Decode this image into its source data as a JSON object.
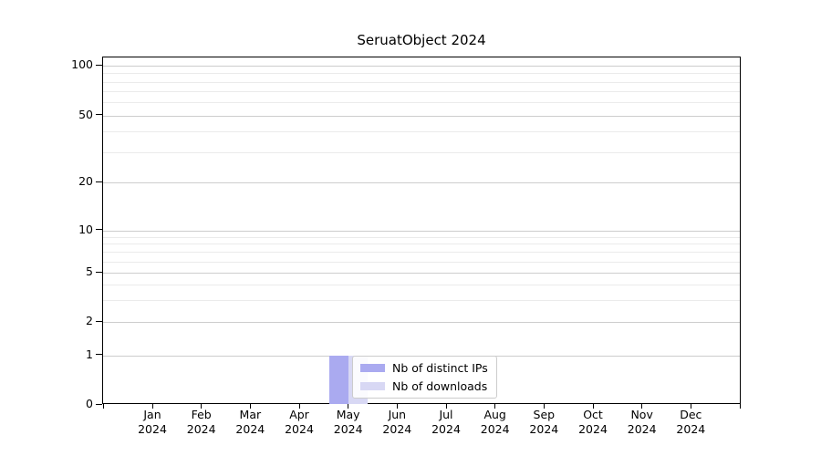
{
  "title": "SeruatObject 2024",
  "colors": {
    "series_ips": "#aaaaf0",
    "series_downloads": "#d8d8f4",
    "grid_major": "#cdcdcd",
    "grid_minor": "#ebebeb",
    "axis": "#000000",
    "legend_border": "#cccccc",
    "background": "#ffffff"
  },
  "legend": {
    "items": [
      {
        "label": "Nb of distinct IPs",
        "color": "#aaaaf0"
      },
      {
        "label": "Nb of downloads",
        "color": "#d8d8f4"
      }
    ]
  },
  "chart_data": {
    "type": "bar",
    "title": "SeruatObject 2024",
    "categories": [
      "Jan 2024",
      "Feb 2024",
      "Mar 2024",
      "Apr 2024",
      "May 2024",
      "Jun 2024",
      "Jul 2024",
      "Aug 2024",
      "Sep 2024",
      "Oct 2024",
      "Nov 2024",
      "Dec 2024"
    ],
    "series": [
      {
        "name": "Nb of distinct IPs",
        "color": "#aaaaf0",
        "values": [
          0,
          0,
          0,
          0,
          1,
          0,
          0,
          0,
          0,
          0,
          0,
          0
        ]
      },
      {
        "name": "Nb of downloads",
        "color": "#d8d8f4",
        "values": [
          0,
          0,
          0,
          0,
          1,
          0,
          0,
          0,
          0,
          0,
          0,
          0
        ]
      }
    ],
    "xlabel": "",
    "ylabel": "",
    "yscale": "symlog",
    "yticks": [
      0,
      1,
      2,
      5,
      10,
      20,
      50,
      100
    ],
    "yticks_minor": [
      3,
      4,
      6,
      7,
      8,
      9,
      30,
      40,
      60,
      70,
      80,
      90
    ],
    "ylim": [
      0,
      115
    ],
    "grid": true,
    "legend_position": "inside-lower-center"
  }
}
